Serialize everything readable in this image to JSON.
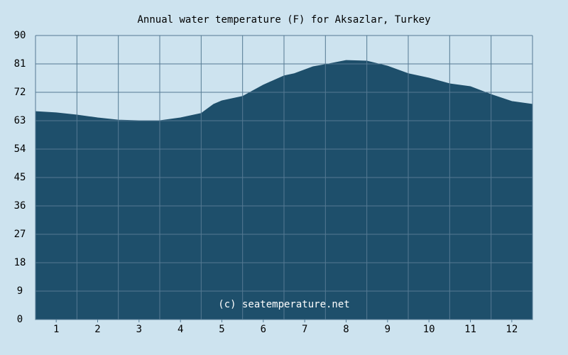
{
  "chart_data": {
    "type": "area",
    "title": "Annual water temperature (F) for Aksazlar, Turkey",
    "annotation": "(c) seatemperature.net",
    "x": [
      0,
      0.5,
      1,
      1.5,
      2,
      2.5,
      3,
      3.5,
      4,
      4.3,
      4.5,
      5,
      5.5,
      6,
      6.25,
      6.7,
      7,
      7.5,
      8,
      8.5,
      9,
      9.5,
      10,
      10.5,
      11,
      11.5,
      12
    ],
    "values": [
      65.9,
      65.5,
      64.8,
      63.9,
      63.2,
      63.0,
      63.0,
      63.9,
      65.3,
      68.2,
      69.3,
      70.7,
      74.3,
      77.2,
      77.9,
      80.1,
      80.8,
      82.1,
      81.9,
      80.3,
      77.9,
      76.5,
      74.7,
      73.8,
      71.3,
      69.1,
      68.2
    ],
    "color": "#1e4f6b",
    "xlim": [
      0,
      12
    ],
    "xticks": [
      {
        "value": 0.5,
        "label": "1"
      },
      {
        "value": 1.5,
        "label": "2"
      },
      {
        "value": 2.5,
        "label": "3"
      },
      {
        "value": 3.5,
        "label": "4"
      },
      {
        "value": 4.5,
        "label": "5"
      },
      {
        "value": 5.5,
        "label": "6"
      },
      {
        "value": 6.5,
        "label": "7"
      },
      {
        "value": 7.5,
        "label": "8"
      },
      {
        "value": 8.5,
        "label": "9"
      },
      {
        "value": 9.5,
        "label": "10"
      },
      {
        "value": 10.5,
        "label": "11"
      },
      {
        "value": 11.5,
        "label": "12"
      }
    ],
    "xgrid": [
      0,
      1,
      2,
      3,
      4,
      5,
      6,
      7,
      8,
      9,
      10,
      11,
      12
    ],
    "ylim": [
      0,
      90
    ],
    "yticks": [
      0,
      9,
      18,
      27,
      36,
      45,
      54,
      63,
      72,
      81,
      90
    ],
    "grid": true
  }
}
